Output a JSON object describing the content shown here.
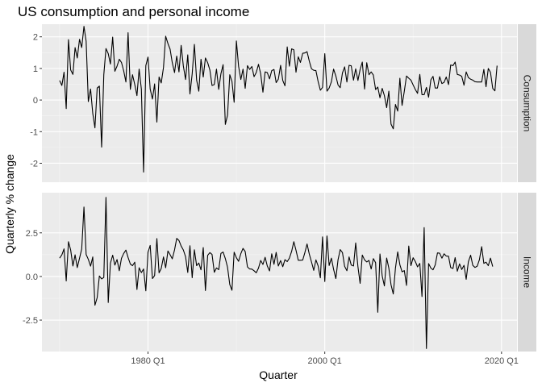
{
  "chart_data": {
    "type": "line",
    "title": "US consumption and personal income",
    "xlabel": "Quarter",
    "ylabel": "Quarterly % change",
    "x_start_quarter": "1970 Q1",
    "x_ticks": [
      "1980 Q1",
      "2000 Q1",
      "2020 Q1"
    ],
    "xlim": [
      "1968 Q1",
      "2021 Q4"
    ],
    "grid": true,
    "panels": [
      {
        "name": "Consumption",
        "ylim": [
          -2.6,
          2.4
        ],
        "y_ticks": [
          "-2",
          "-1",
          "0",
          "1",
          "2"
        ],
        "y_tick_values": [
          -2,
          -1,
          0,
          1,
          2
        ],
        "values": [
          0.62,
          0.46,
          0.88,
          -0.27,
          1.91,
          0.95,
          0.81,
          1.66,
          1.33,
          1.92,
          1.66,
          2.33,
          1.86,
          -0.05,
          0.35,
          -0.42,
          -0.88,
          0.38,
          0.44,
          -1.49,
          0.8,
          1.63,
          1.47,
          1.14,
          1.99,
          0.91,
          1.07,
          1.29,
          1.19,
          0.92,
          0.57,
          2.13,
          0.34,
          0.8,
          0.49,
          0.14,
          0.98,
          0.34,
          -2.28,
          1.09,
          1.36,
          0.35,
          0.03,
          0.51,
          -0.7,
          0.73,
          0.54,
          1.03,
          2.02,
          1.79,
          1.61,
          1.18,
          0.87,
          1.39,
          0.89,
          1.73,
          1.08,
          0.65,
          1.43,
          0.19,
          0.83,
          1.76,
          0.63,
          0.28,
          1.29,
          0.73,
          1.33,
          1.18,
          0.95,
          0.46,
          0.49,
          0.98,
          0.34,
          0.83,
          1.12,
          -0.77,
          -0.48,
          0.8,
          0.59,
          -0.07,
          1.87,
          1.07,
          0.65,
          0.98,
          0.37,
          1.09,
          0.97,
          1.06,
          0.74,
          0.87,
          1.13,
          0.83,
          0.25,
          0.89,
          0.87,
          0.67,
          0.93,
          0.97,
          0.55,
          0.66,
          1.1,
          0.62,
          0.45,
          1.68,
          1.07,
          1.62,
          1.59,
          0.88,
          1.37,
          1.19,
          1.48,
          1.49,
          1.53,
          1.23,
          0.99,
          0.94,
          0.93,
          0.59,
          0.31,
          0.4,
          1.47,
          0.28,
          0.38,
          0.58,
          0.98,
          0.76,
          0.48,
          0.39,
          0.86,
          1.05,
          0.57,
          1.1,
          1.08,
          0.63,
          0.99,
          0.62,
          0.97,
          1.2,
          0.35,
          1.18,
          0.8,
          0.89,
          0.79,
          0.33,
          0.41,
          0.07,
          0.37,
          0.14,
          -0.24,
          0.28,
          -0.76,
          -0.91,
          -0.14,
          -0.35,
          0.69,
          -0.17,
          0.28,
          0.76,
          0.69,
          0.63,
          0.48,
          0.33,
          0.21,
          0.81,
          0.17,
          0.17,
          0.4,
          0.09,
          0.64,
          0.75,
          0.38,
          0.38,
          0.74,
          0.52,
          0.56,
          0.73,
          0.49,
          1.11,
          1.09,
          1.2,
          0.81,
          0.79,
          0.75,
          0.47,
          0.89,
          0.71,
          0.66,
          0.63,
          0.58,
          0.57,
          0.57,
          0.57,
          0.97,
          0.42,
          1.0,
          0.88,
          0.37,
          0.29,
          1.09
        ]
      },
      {
        "name": "Income",
        "ylim": [
          -4.3,
          4.8
        ],
        "y_ticks": [
          "-2.5",
          "0.0",
          "2.5"
        ],
        "y_tick_values": [
          -2.5,
          0,
          2.5
        ],
        "values": [
          1.05,
          1.24,
          1.58,
          -0.26,
          1.99,
          1.52,
          0.6,
          1.24,
          0.51,
          1.05,
          1.57,
          3.98,
          1.26,
          0.98,
          0.59,
          1.12,
          -1.65,
          -1.21,
          0.03,
          -0.14,
          -0.06,
          4.53,
          -1.49,
          0.76,
          1.22,
          0.65,
          0.97,
          0.33,
          1.04,
          1.32,
          1.51,
          1.09,
          0.71,
          0.62,
          0.82,
          -0.75,
          0.5,
          0.22,
          0.43,
          -0.82,
          1.39,
          1.78,
          -0.12,
          0.05,
          2.17,
          0.21,
          0.46,
          1.12,
          0.5,
          1.46,
          1.25,
          1.01,
          1.52,
          2.18,
          2.06,
          1.74,
          1.52,
          1.13,
          0.23,
          1.76,
          -0.07,
          1.53,
          0.62,
          0.77,
          0.38,
          1.66,
          -0.81,
          1.21,
          1.37,
          1.26,
          0.24,
          0.49,
          0.39,
          1.32,
          1.4,
          1.02,
          0.53,
          -0.46,
          -0.79,
          1.39,
          1.07,
          0.87,
          1.31,
          1.61,
          1.43,
          0.55,
          0.43,
          0.42,
          0.33,
          0.21,
          0.48,
          0.92,
          0.69,
          1.1,
          0.6,
          0.32,
          1.3,
          0.7,
          1.38,
          0.6,
          0.91,
          0.56,
          0.96,
          0.85,
          1.05,
          1.44,
          1.99,
          1.5,
          0.93,
          0.93,
          0.94,
          1.37,
          1.86,
          1.28,
          0.83,
          0.35,
          0.95,
          0.61,
          -0.08,
          2.27,
          -0.29,
          2.32,
          0.63,
          1.05,
          0.41,
          -0.12,
          0.95,
          1.54,
          1.37,
          0.58,
          0.33,
          1.12,
          0.65,
          0.6,
          1.92,
          0.56,
          -0.39,
          1.23,
          0.95,
          0.83,
          0.92,
          0.43,
          1.02,
          0.79,
          -2.05,
          1.29,
          0.02,
          -0.54,
          1.06,
          0.48,
          -0.47,
          -1.0,
          0.48,
          1.41,
          0.67,
          0.27,
          0.34,
          -0.51,
          1.74,
          0.62,
          1.07,
          0.85,
          0.55,
          0.75,
          -1.15,
          2.8,
          -4.13,
          0.74,
          0.48,
          0.38,
          0.66,
          1.35,
          1.33,
          1.05,
          1.3,
          1.17,
          1.16,
          0.51,
          0.46,
          1.08,
          0.3,
          0.72,
          0.4,
          0.64,
          -0.16,
          0.84,
          1.22,
          0.64,
          0.52,
          0.59,
          0.96,
          1.71,
          0.75,
          0.82,
          0.62,
          1.05,
          0.57
        ]
      }
    ]
  }
}
